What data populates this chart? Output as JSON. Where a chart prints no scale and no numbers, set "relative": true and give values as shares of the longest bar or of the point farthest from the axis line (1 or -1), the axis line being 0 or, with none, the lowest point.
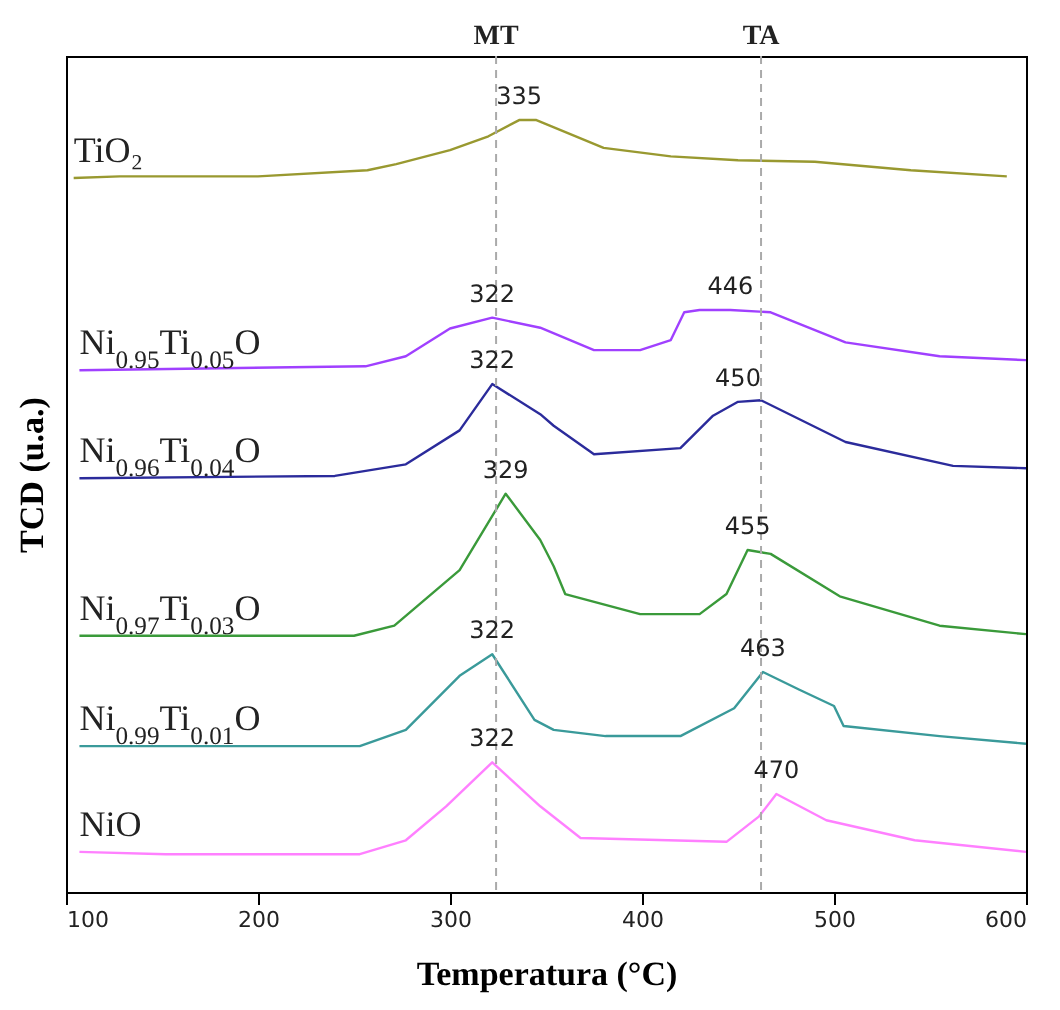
{
  "chart_data": {
    "type": "line",
    "xlabel": "Temperatura (°C)",
    "ylabel": "TCD (u.a.)",
    "relative": true,
    "xlim": [
      100,
      600
    ],
    "xticks": [
      100,
      200,
      300,
      400,
      500,
      600
    ],
    "grid": false,
    "series": [
      {
        "name": "TiO₂",
        "color": "#999930",
        "x": [
          104,
          128,
          200,
          257,
          272,
          300,
          320,
          336,
          345,
          380,
          415,
          450,
          490,
          540,
          590
        ],
        "values": [
          0.925,
          0.927,
          0.927,
          0.935,
          0.943,
          0.961,
          0.979,
          1.0,
          1.0,
          0.964,
          0.953,
          0.948,
          0.946,
          0.935,
          0.927
        ]
      },
      {
        "name": "Ni$_{0.95}$Ti$_{0.05}$O",
        "color": "#a040ff",
        "x": [
          107,
          256,
          277,
          300,
          322,
          347,
          375,
          399,
          415,
          422,
          430,
          446,
          467,
          506,
          555,
          600
        ],
        "values": [
          0.676,
          0.681,
          0.694,
          0.73,
          0.744,
          0.731,
          0.702,
          0.702,
          0.715,
          0.751,
          0.754,
          0.754,
          0.751,
          0.712,
          0.694,
          0.689
        ]
      },
      {
        "name": "Ni$_{0.96}$Ti$_{0.04}$O",
        "color": "#2b2b9b",
        "x": [
          107,
          240,
          277,
          305,
          322,
          347,
          354,
          375,
          420,
          437,
          450,
          462,
          506,
          562,
          600
        ],
        "values": [
          0.536,
          0.539,
          0.554,
          0.598,
          0.658,
          0.619,
          0.604,
          0.567,
          0.575,
          0.617,
          0.635,
          0.637,
          0.583,
          0.552,
          0.549
        ]
      },
      {
        "name": "Ni$_{0.97}$Ti$_{0.03}$O",
        "color": "#3a9a3a",
        "x": [
          107,
          250,
          271,
          305,
          329,
          347,
          354,
          360,
          399,
          430,
          444,
          455,
          467,
          503,
          555,
          600
        ],
        "values": [
          0.332,
          0.332,
          0.345,
          0.417,
          0.516,
          0.456,
          0.422,
          0.386,
          0.36,
          0.36,
          0.386,
          0.443,
          0.438,
          0.383,
          0.345,
          0.334
        ]
      },
      {
        "name": "Ni$_{0.99}$Ti$_{0.01}$O",
        "color": "#3a9a9a",
        "x": [
          107,
          253,
          277,
          305,
          322,
          344,
          354,
          381,
          420,
          448,
          463,
          482,
          500,
          505,
          555,
          600
        ],
        "values": [
          0.189,
          0.189,
          0.21,
          0.28,
          0.308,
          0.223,
          0.21,
          0.202,
          0.202,
          0.238,
          0.285,
          0.262,
          0.241,
          0.215,
          0.202,
          0.192
        ]
      },
      {
        "name": "NiO",
        "color": "#ff80ff",
        "x": [
          107,
          152,
          253,
          277,
          298,
          322,
          347,
          368,
          444,
          461,
          470,
          496,
          542,
          600
        ],
        "values": [
          0.052,
          0.049,
          0.049,
          0.067,
          0.111,
          0.168,
          0.111,
          0.07,
          0.065,
          0.098,
          0.127,
          0.093,
          0.067,
          0.052
        ]
      }
    ],
    "ref_lines": [
      {
        "axis": "x",
        "value": 324,
        "label": "MT",
        "color": "#aaaaaa",
        "line_style": "dashed"
      },
      {
        "axis": "x",
        "value": 462,
        "label": "TA",
        "color": "#aaaaaa",
        "line_style": "dashed"
      }
    ],
    "annotations": [
      {
        "text": "335",
        "x": 336,
        "y": 1.0
      },
      {
        "text": "322",
        "x": 322,
        "y": 0.744
      },
      {
        "text": "446",
        "x": 446,
        "y": 0.754
      },
      {
        "text": "322",
        "x": 322,
        "y": 0.658
      },
      {
        "text": "450",
        "x": 450,
        "y": 0.635
      },
      {
        "text": "329",
        "x": 329,
        "y": 0.516
      },
      {
        "text": "455",
        "x": 455,
        "y": 0.443
      },
      {
        "text": "322",
        "x": 322,
        "y": 0.308
      },
      {
        "text": "463",
        "x": 463,
        "y": 0.285
      },
      {
        "text": "322",
        "x": 322,
        "y": 0.168
      },
      {
        "text": "470",
        "x": 470,
        "y": 0.127
      }
    ]
  }
}
